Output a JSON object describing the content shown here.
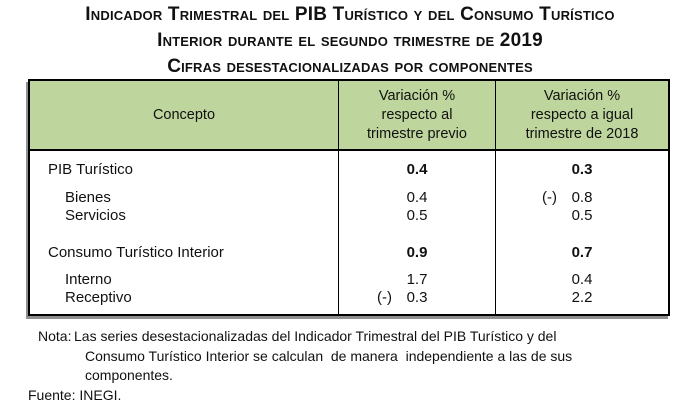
{
  "title": {
    "line1": "Indicador Trimestral del PIB Turístico y del Consumo Turístico",
    "line2": "Interior durante el segundo trimestre de 2019",
    "line3": "Cifras desestacionalizadas por componentes"
  },
  "colors": {
    "header_bg": "#bed69e",
    "border": "#000000",
    "shadow": "#8f8f8f",
    "text": "#111111"
  },
  "table": {
    "header": {
      "concept": "Concepto",
      "col_prev": "Variación %\nrespecto al\ntrimestre previo",
      "col_year": "Variación %\nrespecto a igual\ntrimestre de 2018"
    },
    "rows": [
      {
        "label": "PIB Turístico",
        "prev_sign": "",
        "prev": "0.4",
        "year_sign": "",
        "year": "0.3"
      },
      {
        "label": "Bienes",
        "prev_sign": "",
        "prev": "0.4",
        "year_sign": "(-)",
        "year": "0.8"
      },
      {
        "label": "Servicios",
        "prev_sign": "",
        "prev": "0.5",
        "year_sign": "",
        "year": "0.5"
      },
      {
        "label": "Consumo Turístico Interior",
        "prev_sign": "",
        "prev": "0.9",
        "year_sign": "",
        "year": "0.7"
      },
      {
        "label": "Interno",
        "prev_sign": "",
        "prev": "1.7",
        "year_sign": "",
        "year": "0.4"
      },
      {
        "label": "Receptivo",
        "prev_sign": "(-)",
        "prev": "0.3",
        "year_sign": "",
        "year": "2.2"
      }
    ]
  },
  "note": {
    "label": "Nota:",
    "lines": [
      "Las series desestacionalizadas del Indicador Trimestral del PIB Turístico y del",
      "Consumo Turístico Interior se calculan  de manera  independiente a las de sus",
      "componentes."
    ],
    "source": "Fuente: INEGI."
  }
}
